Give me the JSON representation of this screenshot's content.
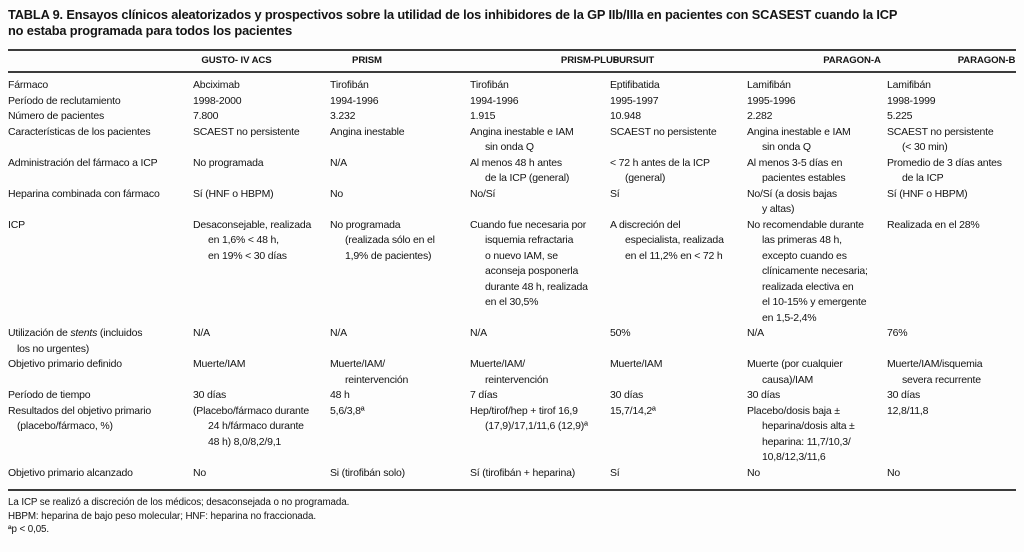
{
  "title": "TABLA 9. Ensayos clínicos aleatorizados y prospectivos sobre la utilidad de los inhibidores de la GP IIb/IIIa en pacientes con SCASEST cuando la ICP\nno estaba programada para todos los pacientes",
  "table": {
    "column_headers": [
      "GUSTO- IV ACS",
      "PRISM",
      "PRISM-PLUS",
      "PURSUIT",
      "PARAGON-A",
      "PARAGON-B"
    ],
    "rows": [
      {
        "label": "Fármaco",
        "cells": [
          "Abciximab",
          "Tirofibán",
          "Tirofibán",
          "Eptifibatida",
          "Lamifibán",
          "Lamifibán"
        ]
      },
      {
        "label": "Período de reclutamiento",
        "cells": [
          "1998-2000",
          "1994-1996",
          "1994-1996",
          "1995-1997",
          "1995-1996",
          "1998-1999"
        ]
      },
      {
        "label": "Número de pacientes",
        "cells": [
          "7.800",
          "3.232",
          "1.915",
          "10.948",
          "2.282",
          "5.225"
        ]
      },
      {
        "label": "Características de los pacientes",
        "cells": [
          "SCAEST no persistente",
          "Angina inestable",
          "Angina inestable e IAM\nsin onda Q",
          "SCAEST no persistente",
          "Angina inestable e IAM\nsin onda Q",
          "SCAEST no persistente\n(< 30 min)"
        ]
      },
      {
        "label": "Administración del fármaco a ICP",
        "cells": [
          "No programada",
          "N/A",
          "Al menos 48 h antes\nde la ICP (general)",
          "< 72 h antes de la ICP\n(general)",
          "Al menos 3-5 días en\npacientes estables",
          "Promedio de 3 días antes\nde la ICP"
        ]
      },
      {
        "label": "Heparina combinada con fármaco",
        "cells": [
          "Sí (HNF o HBPM)",
          "No",
          "No/Sí",
          "Sí",
          "No/Sí (a dosis bajas\ny altas)",
          "Sí (HNF o HBPM)"
        ]
      },
      {
        "label": "ICP",
        "cells": [
          "Desaconsejable, realizada\nen 1,6% < 48 h,\nen 19% < 30 días",
          "No programada\n(realizada sólo en el\n1,9% de pacientes)",
          "Cuando fue necesaria por\nisquemia refractaria\no nuevo IAM, se\naconseja posponerla\ndurante 48 h, realizada\nen el 30,5%",
          "A discreción del\nespecialista, realizada\nen el 11,2% en < 72 h",
          "No recomendable durante\nlas primeras 48 h,\nexcepto cuando es\nclínicamente necesaria;\nrealizada electiva en\nel 10-15% y emergente\nen 1,5-2,4%",
          "Realizada en el 28%"
        ]
      },
      {
        "label": "Utilización de *stents* (incluidos\nlos no urgentes)",
        "cells": [
          "N/A",
          "N/A",
          "N/A",
          "50%",
          "N/A",
          "76%"
        ]
      },
      {
        "label": "Objetivo primario definido",
        "cells": [
          "Muerte/IAM",
          "Muerte/IAM/\nreintervención",
          "Muerte/IAM/\nreintervención",
          "Muerte/IAM",
          "Muerte (por cualquier\ncausa)/IAM",
          "Muerte/IAM/isquemia\nsevera recurrente"
        ]
      },
      {
        "label": "Período de tiempo",
        "cells": [
          "30 días",
          "48 h",
          "7 días",
          "30 días",
          "30 días",
          "30 días"
        ]
      },
      {
        "label": "Resultados del objetivo primario\n(placebo/fármaco, %)",
        "cells": [
          "(Placebo/fármaco durante\n24 h/fármaco durante\n48 h) 8,0/8,2/9,1",
          "5,6/3,8ª",
          "Hep/tirof/hep + tirof 16,9\n(17,9)/17,1/11,6 (12,9)ª",
          "15,7/14,2ª",
          "Placebo/dosis baja ±\nheparina/dosis alta ±\nheparina: 11,7/10,3/\n10,8/12,3/11,6",
          "12,8/11,8"
        ]
      },
      {
        "label": "Objetivo primario alcanzado",
        "cells": [
          "No",
          "Si (tirofibán solo)",
          "Sí (tirofibán + heparina)",
          "Sí",
          "No",
          "No"
        ]
      }
    ]
  },
  "footnotes": [
    "La ICP se realizó a discreción de los médicos; desaconsejada o no programada.",
    "HBPM: heparina de bajo peso molecular; HNF: heparina no fraccionada.",
    "ªp < 0,05."
  ]
}
